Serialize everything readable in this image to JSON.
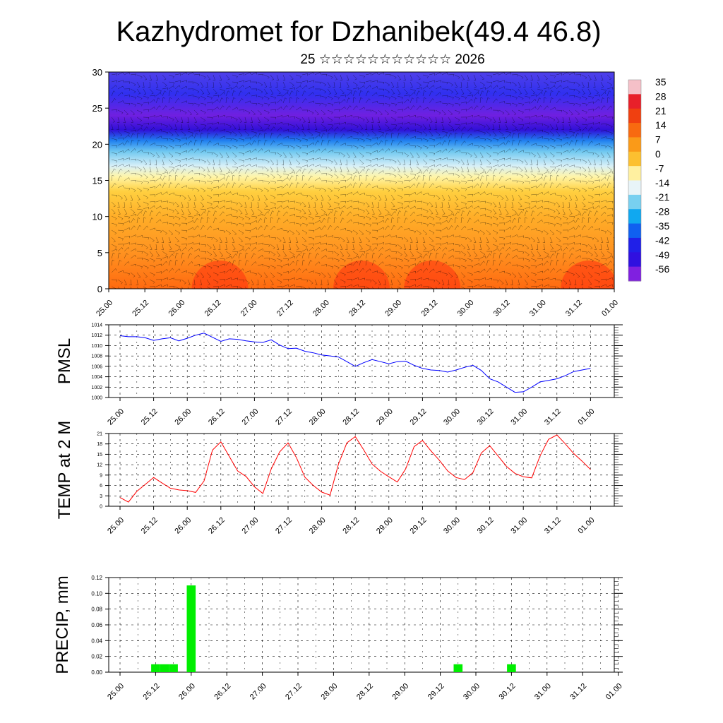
{
  "title": "Kazhydromet for Dzhanibek(49.4 46.8)",
  "subtitle": "25 ☆☆☆☆☆☆☆☆☆☆☆ 2026",
  "time_labels": [
    "25.00",
    "25.12",
    "26.00",
    "26.12",
    "27.00",
    "27.12",
    "28.00",
    "28.12",
    "29.00",
    "29.12",
    "30.00",
    "30.12",
    "31.00",
    "31.12",
    "01.00"
  ],
  "chart_data": [
    {
      "type": "heatmap",
      "name": "temperature-cross-section",
      "ylim": [
        0,
        30
      ],
      "y_ticks": [
        "0",
        "5",
        "10",
        "15",
        "20",
        "25",
        "30"
      ],
      "colorbar_labels": [
        "35",
        "28",
        "21",
        "14",
        "7",
        "0",
        "-7",
        "-14",
        "-21",
        "-28",
        "-35",
        "-42",
        "-49",
        "-56"
      ],
      "colorbar_colors": [
        "#f5c0c8",
        "#e8202a",
        "#f04010",
        "#f86a10",
        "#fa9a18",
        "#fcc030",
        "#fff0a0",
        "#e8f4f8",
        "#78d0f0",
        "#10a8f0",
        "#1060f0",
        "#2020e8",
        "#3010e0",
        "#8020e0"
      ],
      "level_colors": [
        {
          "h": 0,
          "color": "#ff6a10"
        },
        {
          "h": 5,
          "color": "#ff9220"
        },
        {
          "h": 10,
          "color": "#ffae28"
        },
        {
          "h": 13.5,
          "color": "#ffd040"
        },
        {
          "h": 15.5,
          "color": "#fff5a8"
        },
        {
          "h": 17,
          "color": "#d8f0f8"
        },
        {
          "h": 19,
          "color": "#70c8f0"
        },
        {
          "h": 20.5,
          "color": "#2080f0"
        },
        {
          "h": 22,
          "color": "#3010d8"
        },
        {
          "h": 24,
          "color": "#7020e0"
        },
        {
          "h": 27,
          "color": "#3030f0"
        },
        {
          "h": 30,
          "color": "#5040e8"
        }
      ]
    },
    {
      "type": "line",
      "ylabel": "PMSL",
      "ylim": [
        1000,
        1014
      ],
      "y_ticks": [
        "1000",
        "1002",
        "1004",
        "1006",
        "1008",
        "1010",
        "1012",
        "1014"
      ],
      "color": "#0000ff",
      "values": [
        1011.9,
        1011.7,
        1011.7,
        1011.5,
        1011.0,
        1011.3,
        1011.5,
        1010.9,
        1011.4,
        1012.0,
        1012.4,
        1011.6,
        1010.8,
        1011.3,
        1011.2,
        1010.9,
        1010.7,
        1010.6,
        1011.1,
        1010.1,
        1009.4,
        1009.5,
        1008.9,
        1008.6,
        1008.2,
        1008.0,
        1007.8,
        1006.9,
        1006.0,
        1006.7,
        1007.3,
        1006.9,
        1006.5,
        1006.9,
        1007.0,
        1006.2,
        1005.6,
        1005.3,
        1005.2,
        1004.9,
        1005.3,
        1005.8,
        1006.2,
        1005.2,
        1003.6,
        1003.0,
        1002.0,
        1001.0,
        1001.1,
        1002.0,
        1003.0,
        1003.3,
        1003.6,
        1004.2,
        1005.0,
        1005.3,
        1005.6
      ]
    },
    {
      "type": "line",
      "ylabel": "TEMP at 2 M",
      "ylim": [
        0,
        21
      ],
      "y_ticks": [
        "0",
        "3",
        "6",
        "9",
        "12",
        "15",
        "18",
        "21"
      ],
      "color": "#ff0000",
      "values": [
        2.5,
        1.2,
        4.3,
        6.3,
        8.3,
        6.7,
        5.2,
        4.7,
        4.5,
        4.0,
        7.3,
        16.2,
        18.6,
        14.4,
        10.2,
        8.6,
        5.6,
        3.7,
        10.8,
        15.7,
        18.3,
        14.0,
        8.4,
        6.0,
        4.1,
        3.2,
        12.2,
        18.3,
        20.1,
        16.3,
        12.2,
        10.1,
        8.5,
        7.0,
        10.8,
        17.2,
        19.0,
        16.0,
        13.3,
        10.2,
        8.3,
        7.7,
        9.7,
        15.4,
        17.5,
        14.5,
        11.5,
        9.5,
        8.5,
        8.2,
        14.6,
        19.3,
        20.6,
        18.0,
        15.2,
        13.0,
        10.6
      ]
    },
    {
      "type": "bar",
      "ylabel": "PRECIP, mm",
      "ylim": [
        0,
        0.12
      ],
      "y_ticks": [
        "0.00",
        "0.02",
        "0.04",
        "0.06",
        "0.08",
        "0.10",
        "0.12"
      ],
      "color": "#00ee00",
      "values": [
        0,
        0,
        0,
        0,
        0.01,
        0.01,
        0.01,
        0,
        0.11,
        0,
        0,
        0,
        0,
        0,
        0,
        0,
        0,
        0,
        0,
        0,
        0,
        0,
        0,
        0,
        0,
        0,
        0,
        0,
        0,
        0,
        0,
        0,
        0,
        0,
        0,
        0,
        0,
        0,
        0.01,
        0,
        0,
        0,
        0,
        0,
        0.01,
        0,
        0,
        0,
        0,
        0,
        0,
        0,
        0,
        0,
        0,
        0,
        0
      ]
    }
  ]
}
